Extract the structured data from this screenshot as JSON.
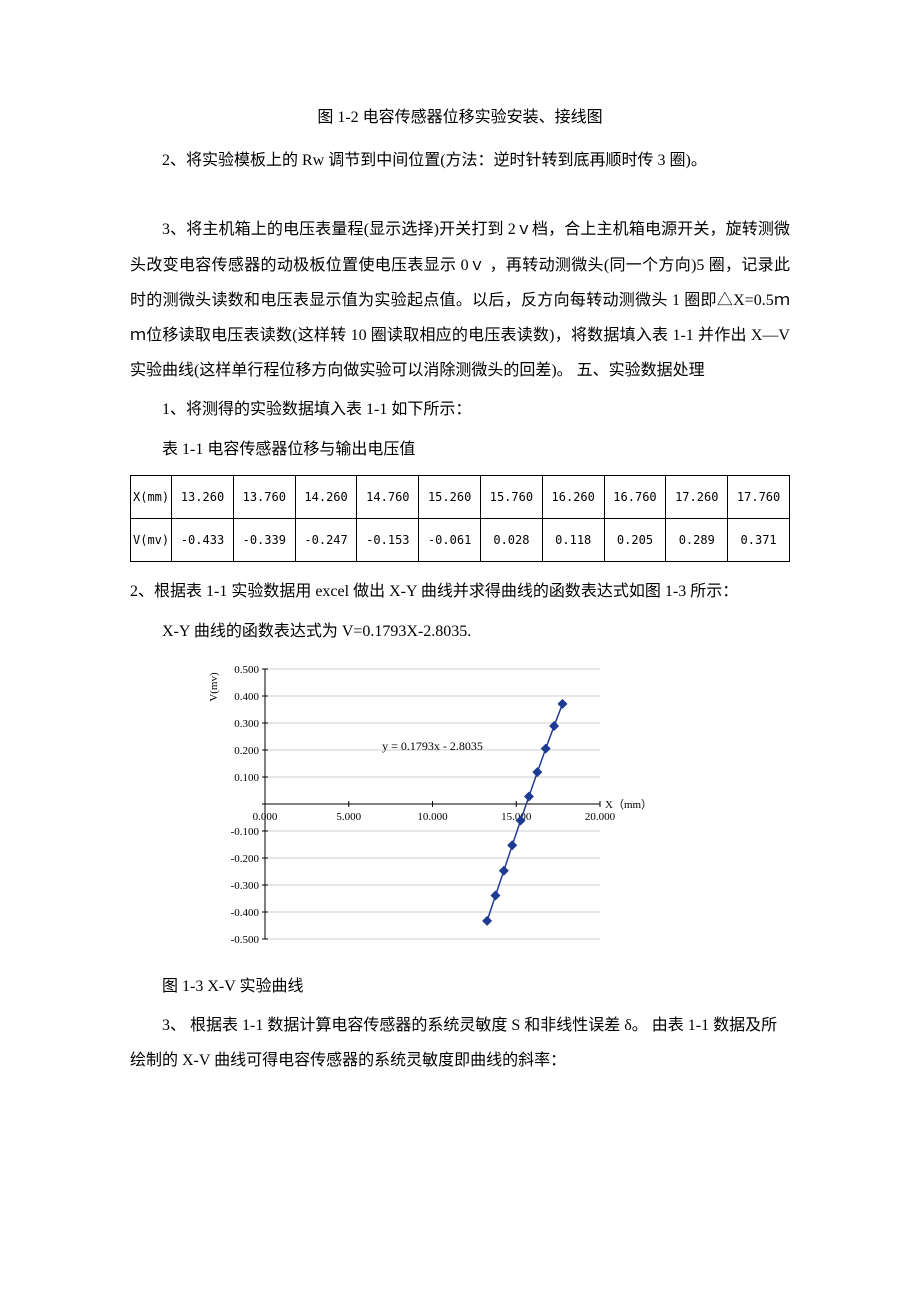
{
  "para": {
    "fig_caption": "图 1-2   电容传感器位移实验安装、接线图",
    "step2": "2、将实验模板上的 Rw 调节到中间位置(方法：逆时针转到底再顺时传 3 圈)。",
    "step3": "3、将主机箱上的电压表量程(显示选择)开关打到 2ｖ档，合上主机箱电源开关，旋转测微头改变电容传感器的动极板位置使电压表显示 0ｖ ，再转动测微头(同一个方向)5 圈，记录此时的测微头读数和电压表显示值为实验起点值。以后，反方向每转动测微头 1 圈即△X=0.5ｍｍ位移读取电压表读数(这样转 10 圈读取相应的电压表读数)，将数据填入表 1-1 并作出 X—V 实验曲线(这样单行程位移方向做实验可以消除测微头的回差)。 五、实验数据处理",
    "item1": "1、将测得的实验数据填入表 1-1 如下所示：",
    "table_caption": "表 1-1 电容传感器位移与输出电压值",
    "item2": "2、根据表 1-1 实验数据用 excel 做出 X-Y 曲线并求得曲线的函数表达式如图 1-3 所示：",
    "formula": "X-Y 曲线的函数表达式为 V=0.1793X-2.8035.",
    "chart_caption": "图 1-3 X-V 实验曲线",
    "item3": "3、 根据表 1-1 数据计算电容传感器的系统灵敏度 S 和非线性误差 δ。 由表 1-1 数据及所绘制的 X-V 曲线可得电容传感器的系统灵敏度即曲线的斜率："
  },
  "table": {
    "row1_label": "X(mm)",
    "row2_label": "V(mv)",
    "x_values": [
      "13.260",
      "13.760",
      "14.260",
      "14.760",
      "15.260",
      "15.760",
      "16.260",
      "16.760",
      "17.260",
      "17.760"
    ],
    "v_values": [
      "-0.433",
      "-0.339",
      "-0.247",
      "-0.153",
      "-0.061",
      "0.028",
      "0.118",
      "0.205",
      "0.289",
      "0.371"
    ]
  },
  "chart": {
    "type": "scatter-line",
    "y_label": "V(mv)",
    "x_label": "X（mm）",
    "equation": "y = 0.1793x - 2.8035",
    "xlim": [
      0,
      20
    ],
    "ylim": [
      -0.5,
      0.5
    ],
    "x_ticks": [
      0,
      5,
      10,
      15,
      20
    ],
    "x_tick_labels": [
      "0.000",
      "5.000",
      "10.000",
      "15.000",
      "20.000"
    ],
    "y_ticks": [
      -0.5,
      -0.4,
      -0.3,
      -0.2,
      -0.1,
      0,
      0.1,
      0.2,
      0.3,
      0.4,
      0.5
    ],
    "y_tick_labels": [
      "-0.500",
      "-0.400",
      "-0.300",
      "-0.200",
      "-0.100",
      "0.000",
      "0.100",
      "0.200",
      "0.300",
      "0.400",
      "0.500"
    ],
    "points_x": [
      13.26,
      13.76,
      14.26,
      14.76,
      15.26,
      15.76,
      16.26,
      16.76,
      17.26,
      17.76
    ],
    "points_y": [
      -0.433,
      -0.339,
      -0.247,
      -0.153,
      -0.061,
      0.028,
      0.118,
      0.205,
      0.289,
      0.371
    ],
    "line_color": "#1f3a93",
    "marker_color": "#1f3a93",
    "marker_size": 5,
    "grid_color": "#999999",
    "background_color": "#ffffff",
    "axis_color": "#000000",
    "label_fontsize": 11,
    "tick_fontsize": 11
  }
}
